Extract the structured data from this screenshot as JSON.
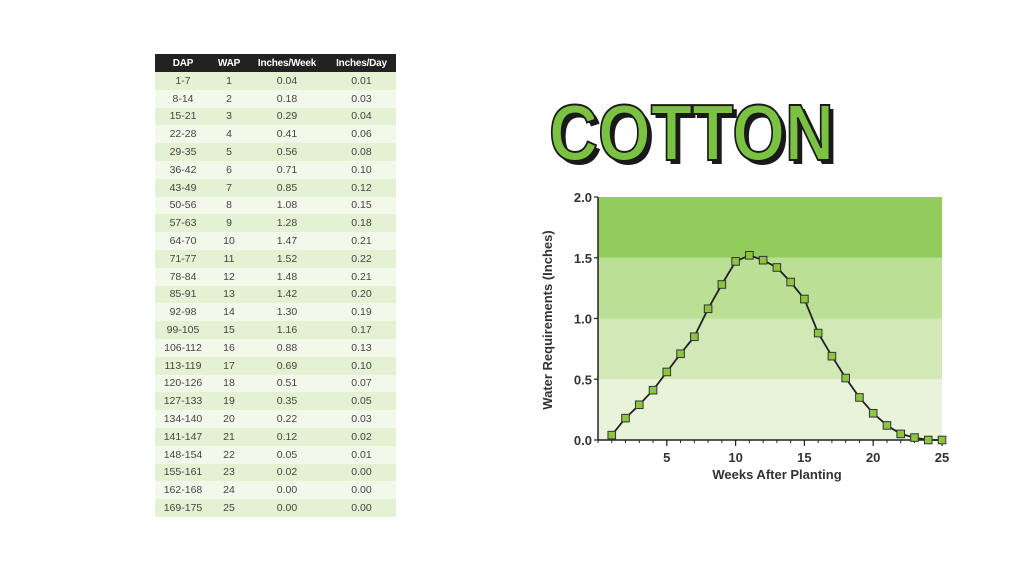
{
  "table": {
    "headers": [
      "DAP",
      "WAP",
      "Inches/Week",
      "Inches/Day"
    ],
    "rows": [
      [
        "1-7",
        "1",
        "0.04",
        "0.01"
      ],
      [
        "8-14",
        "2",
        "0.18",
        "0.03"
      ],
      [
        "15-21",
        "3",
        "0.29",
        "0.04"
      ],
      [
        "22-28",
        "4",
        "0.41",
        "0.06"
      ],
      [
        "29-35",
        "5",
        "0.56",
        "0.08"
      ],
      [
        "36-42",
        "6",
        "0.71",
        "0.10"
      ],
      [
        "43-49",
        "7",
        "0.85",
        "0.12"
      ],
      [
        "50-56",
        "8",
        "1.08",
        "0.15"
      ],
      [
        "57-63",
        "9",
        "1.28",
        "0.18"
      ],
      [
        "64-70",
        "10",
        "1.47",
        "0.21"
      ],
      [
        "71-77",
        "11",
        "1.52",
        "0.22"
      ],
      [
        "78-84",
        "12",
        "1.48",
        "0.21"
      ],
      [
        "85-91",
        "13",
        "1.42",
        "0.20"
      ],
      [
        "92-98",
        "14",
        "1.30",
        "0.19"
      ],
      [
        "99-105",
        "15",
        "1.16",
        "0.17"
      ],
      [
        "106-112",
        "16",
        "0.88",
        "0.13"
      ],
      [
        "113-119",
        "17",
        "0.69",
        "0.10"
      ],
      [
        "120-126",
        "18",
        "0.51",
        "0.07"
      ],
      [
        "127-133",
        "19",
        "0.35",
        "0.05"
      ],
      [
        "134-140",
        "20",
        "0.22",
        "0.03"
      ],
      [
        "141-147",
        "21",
        "0.12",
        "0.02"
      ],
      [
        "148-154",
        "22",
        "0.05",
        "0.01"
      ],
      [
        "155-161",
        "23",
        "0.02",
        "0.00"
      ],
      [
        "162-168",
        "24",
        "0.00",
        "0.00"
      ],
      [
        "169-175",
        "25",
        "0.00",
        "0.00"
      ]
    ]
  },
  "colors": {
    "title_fill": "#7cc242",
    "title_shadow": "#1a1a1a",
    "band_1": "#e8f3da",
    "band_2": "#d2e9b7",
    "band_3": "#bcdf96",
    "band_4": "#92cc5c",
    "line": "#222222",
    "marker_fill": "#8cc63f",
    "marker_stroke": "#333333"
  },
  "chart_data": {
    "type": "line",
    "title": "COTTON",
    "xlabel": "Weeks After Planting",
    "ylabel": "Water Requirements (Inches)",
    "xlim": [
      0,
      25
    ],
    "ylim": [
      0,
      2.0
    ],
    "xticks": [
      5,
      10,
      15,
      20,
      25
    ],
    "xtick_labels": [
      "5",
      "10",
      "15",
      "20",
      "25"
    ],
    "yticks": [
      0,
      0.5,
      1.0,
      1.5,
      2.0
    ],
    "ytick_labels": [
      "0.0",
      "0.5",
      "1.0",
      "1.5",
      "2.0"
    ],
    "grid": false,
    "series": [
      {
        "x": [
          1,
          2,
          3,
          4,
          5,
          6,
          7,
          8,
          9,
          10,
          11,
          12,
          13,
          14,
          15,
          16,
          17,
          18,
          19,
          20,
          21,
          22,
          23,
          24,
          25
        ],
        "values": [
          0.04,
          0.18,
          0.29,
          0.41,
          0.56,
          0.71,
          0.85,
          1.08,
          1.28,
          1.47,
          1.52,
          1.48,
          1.42,
          1.3,
          1.16,
          0.88,
          0.69,
          0.51,
          0.35,
          0.22,
          0.12,
          0.05,
          0.02,
          0.0,
          0.0
        ]
      }
    ]
  }
}
